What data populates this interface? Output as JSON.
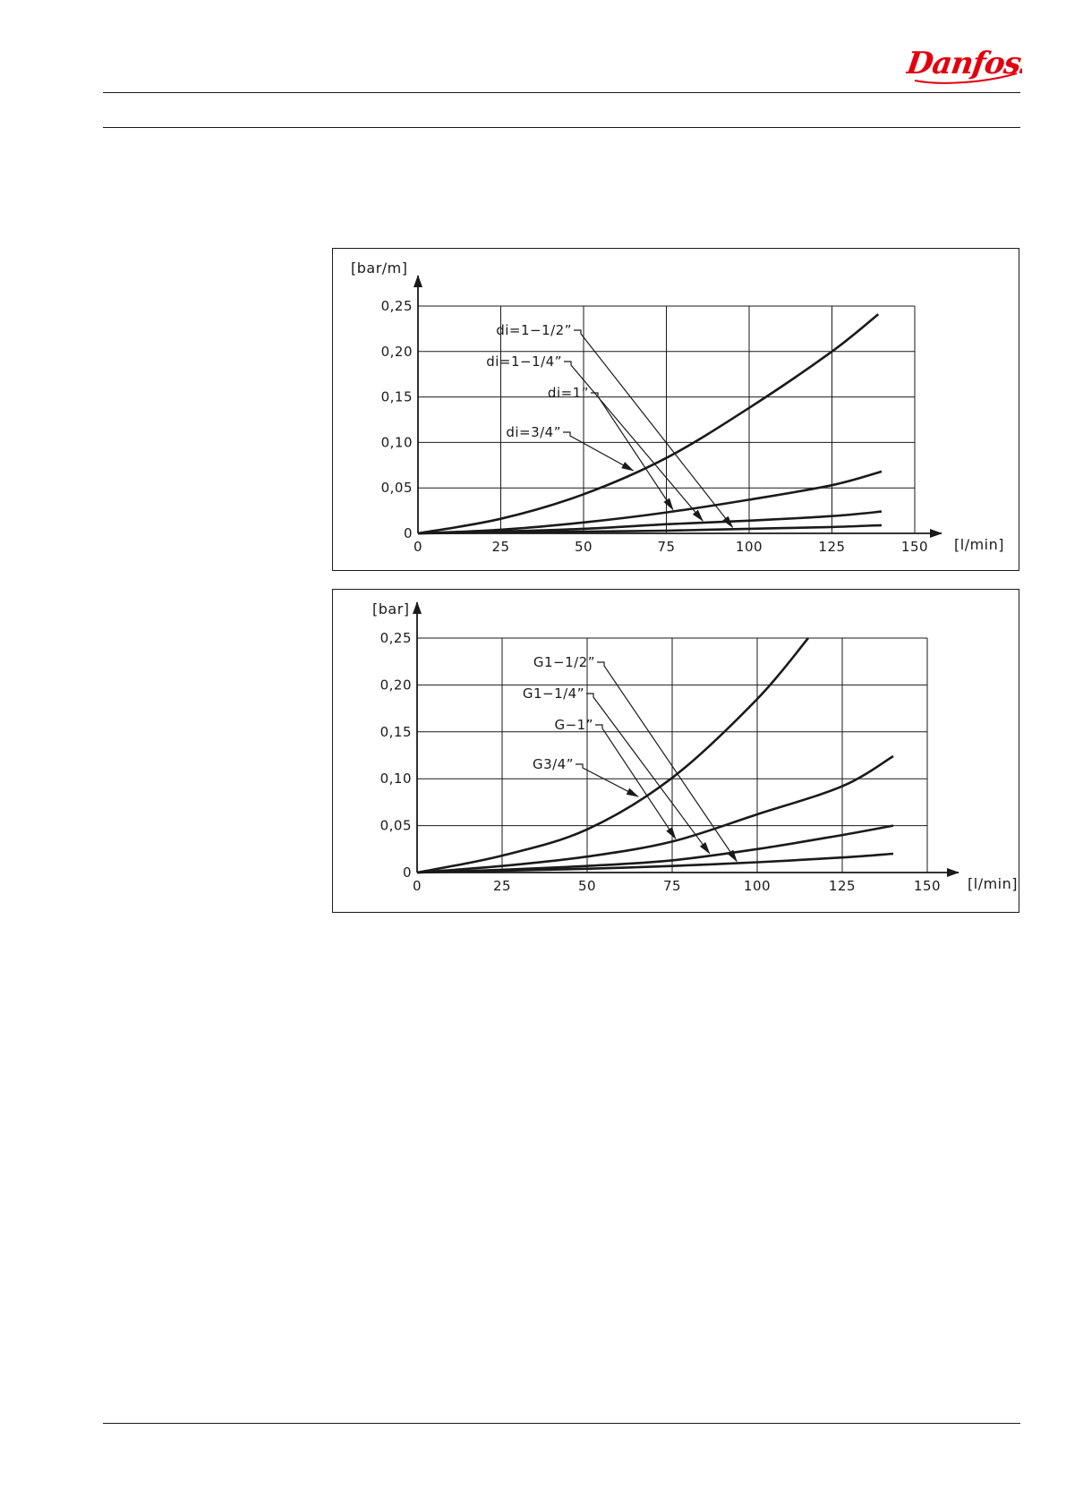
{
  "brand": {
    "name": "Danfoss",
    "color": "#e2000f"
  },
  "chart_data": [
    {
      "type": "line",
      "ylabel": "[bar/m]",
      "xlabel": "[l/min]",
      "xlim": [
        0,
        150
      ],
      "ylim": [
        0,
        0.25
      ],
      "xticks": [
        0,
        25,
        50,
        75,
        100,
        125,
        150
      ],
      "yticks": [
        0,
        0.05,
        0.1,
        0.15,
        0.2,
        0.25
      ],
      "yticklabels": [
        "0",
        "0,05",
        "0,10",
        "0,15",
        "0,20",
        "0,25"
      ],
      "grid": true,
      "series": [
        {
          "name": "di=3/4\"",
          "x": [
            0,
            25,
            50,
            75,
            100,
            125,
            139
          ],
          "y": [
            0,
            0.016,
            0.043,
            0.083,
            0.138,
            0.2,
            0.241
          ]
        },
        {
          "name": "di=1\"",
          "x": [
            0,
            25,
            50,
            75,
            100,
            125,
            140
          ],
          "y": [
            0,
            0.004,
            0.012,
            0.023,
            0.037,
            0.053,
            0.068
          ]
        },
        {
          "name": "di=1-1/4\"",
          "x": [
            0,
            25,
            50,
            75,
            100,
            125,
            140
          ],
          "y": [
            0,
            0.002,
            0.005,
            0.01,
            0.014,
            0.019,
            0.024
          ]
        },
        {
          "name": "di=1-1/2\"",
          "x": [
            0,
            25,
            50,
            75,
            100,
            125,
            140
          ],
          "y": [
            0,
            0.001,
            0.002,
            0.003,
            0.005,
            0.007,
            0.009
          ]
        }
      ],
      "annotations": [
        {
          "text": "di=1−1/2”",
          "series": 3,
          "target_x": 95
        },
        {
          "text": "di=1−1/4”",
          "series": 2,
          "target_x": 86
        },
        {
          "text": "di=1”",
          "series": 1,
          "target_x": 77
        },
        {
          "text": "di=3/4”",
          "series": 0,
          "target_x": 65
        }
      ]
    },
    {
      "type": "line",
      "ylabel": "[bar]",
      "xlabel": "[l/min]",
      "xlim": [
        0,
        150
      ],
      "ylim": [
        0,
        0.25
      ],
      "xticks": [
        0,
        25,
        50,
        75,
        100,
        125,
        150
      ],
      "yticks": [
        0,
        0.05,
        0.1,
        0.15,
        0.2,
        0.25
      ],
      "yticklabels": [
        "0",
        "0,05",
        "0,10",
        "0,15",
        "0,20",
        "0,25"
      ],
      "grid": true,
      "series": [
        {
          "name": "G3/4\"",
          "x": [
            0,
            25,
            50,
            75,
            100,
            115
          ],
          "y": [
            0,
            0.018,
            0.046,
            0.101,
            0.185,
            0.25
          ]
        },
        {
          "name": "G-1\"",
          "x": [
            0,
            25,
            50,
            75,
            100,
            125,
            140
          ],
          "y": [
            0,
            0.007,
            0.017,
            0.033,
            0.062,
            0.092,
            0.124
          ]
        },
        {
          "name": "G1-1/4\"",
          "x": [
            0,
            25,
            50,
            75,
            100,
            125,
            140
          ],
          "y": [
            0,
            0.003,
            0.007,
            0.013,
            0.025,
            0.04,
            0.05
          ]
        },
        {
          "name": "G1-1/2\"",
          "x": [
            0,
            25,
            50,
            75,
            100,
            125,
            140
          ],
          "y": [
            0,
            0.002,
            0.004,
            0.007,
            0.011,
            0.016,
            0.02
          ]
        }
      ],
      "annotations": [
        {
          "text": "G1−1/2”",
          "series": 3,
          "target_x": 94
        },
        {
          "text": "G1−1/4”",
          "series": 2,
          "target_x": 86
        },
        {
          "text": "G−1”",
          "series": 1,
          "target_x": 76
        },
        {
          "text": "G3/4”",
          "series": 0,
          "target_x": 65
        }
      ]
    }
  ]
}
